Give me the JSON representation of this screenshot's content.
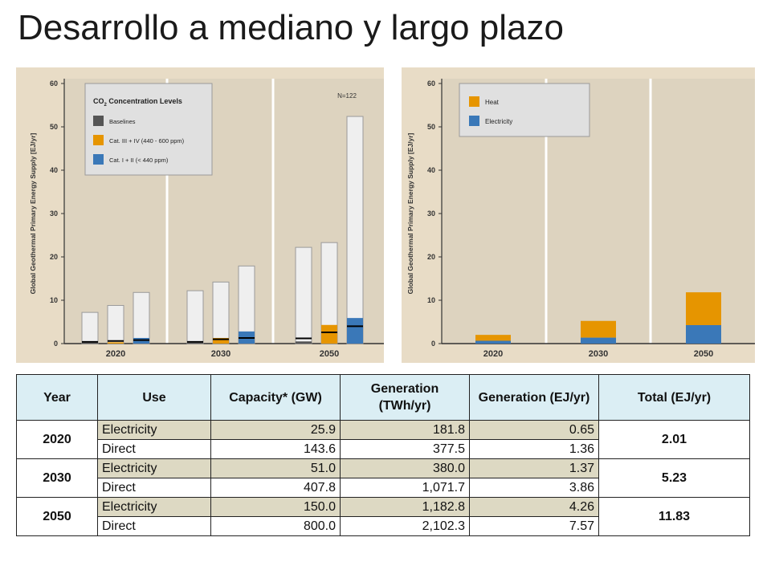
{
  "page_title": "Desarrollo a mediano y largo plazo",
  "colors": {
    "panel_bg": "#e8dcc6",
    "bar_outline": "#9a9a9a",
    "bar_fill": "#efefef",
    "baseline": "#555555",
    "cat34": "#e69500",
    "cat12": "#3a78b8",
    "heat": "#e69500",
    "electricity": "#3a78b8",
    "table_header": "#dbeef4",
    "table_row_highlight": "#ddd9c3"
  },
  "chart_data": [
    {
      "type": "bar",
      "ylabel": "Global Geothermal Primary Energy Supply [EJ/yr]",
      "ylim": [
        0,
        60
      ],
      "yticks": [
        0,
        10,
        20,
        30,
        40,
        50,
        60
      ],
      "legend": {
        "title": "CO2 Concentration Levels",
        "title_main": "CO",
        "title_sub": "2",
        "title_rest": " Concentration Levels",
        "position": "top-left",
        "items": [
          {
            "label": "Baselines",
            "color": "#555555"
          },
          {
            "label": "Cat. III + IV (440 - 600 ppm)",
            "color": "#e69500"
          },
          {
            "label": "Cat. I + II (< 440 ppm)",
            "color": "#3a78b8"
          }
        ]
      },
      "annotation": "N=122",
      "groups": [
        {
          "label": "2020",
          "bars": [
            {
              "category": "Baselines",
              "max": 7.2,
              "median": 0.4,
              "p25": 0.2
            },
            {
              "category": "Cat. III + IV (440 - 600 ppm)",
              "max": 8.8,
              "median": 0.6,
              "p25": 0.3
            },
            {
              "category": "Cat. I + II (< 440 ppm)",
              "max": 11.8,
              "median": 0.8,
              "p25": 1.3
            }
          ]
        },
        {
          "label": "2030",
          "bars": [
            {
              "category": "Baselines",
              "max": 12.2,
              "median": 0.4,
              "p25": 0.2
            },
            {
              "category": "Cat. III + IV (440 - 600 ppm)",
              "max": 14.2,
              "median": 1.0,
              "p25": 1.3
            },
            {
              "category": "Cat. I + II (< 440 ppm)",
              "max": 17.9,
              "median": 1.3,
              "p25": 2.8
            }
          ]
        },
        {
          "label": "2050",
          "bars": [
            {
              "category": "Baselines",
              "max": 22.2,
              "median": 1.2,
              "p25": 0.5
            },
            {
              "category": "Cat. III + IV (440 - 600 ppm)",
              "max": 23.3,
              "median": 2.6,
              "p25": 4.3
            },
            {
              "category": "Cat. I + II (< 440 ppm)",
              "max": 52.4,
              "median": 4.0,
              "p25": 5.9
            }
          ]
        }
      ]
    },
    {
      "type": "bar",
      "stacked": true,
      "ylabel": "Global Geothermal Primary Energy Supply [EJ/yr]",
      "ylim": [
        0,
        60
      ],
      "yticks": [
        0,
        10,
        20,
        30,
        40,
        50,
        60
      ],
      "legend": {
        "position": "top-left",
        "items": [
          {
            "label": "Heat",
            "color": "#e69500"
          },
          {
            "label": "Electricity",
            "color": "#3a78b8"
          }
        ]
      },
      "categories": [
        "2020",
        "2030",
        "2050"
      ],
      "series": [
        {
          "name": "Electricity",
          "values": [
            0.65,
            1.37,
            4.26
          ]
        },
        {
          "name": "Heat",
          "values": [
            1.36,
            3.86,
            7.57
          ]
        }
      ]
    }
  ],
  "table": {
    "headers": [
      "Year",
      "Use",
      "Capacity* (GW)",
      "Generation (TWh/yr)",
      "Generation (EJ/yr)",
      "Total (EJ/yr)"
    ],
    "rows": [
      {
        "year": "2020",
        "total": "2.01",
        "items": [
          {
            "use": "Electricity",
            "capacity": "25.9",
            "twh": "181.8",
            "ej": "0.65"
          },
          {
            "use": "Direct",
            "capacity": "143.6",
            "twh": "377.5",
            "ej": "1.36"
          }
        ]
      },
      {
        "year": "2030",
        "total": "5.23",
        "items": [
          {
            "use": "Electricity",
            "capacity": "51.0",
            "twh": "380.0",
            "ej": "1.37"
          },
          {
            "use": "Direct",
            "capacity": "407.8",
            "twh": "1,071.7",
            "ej": "3.86"
          }
        ]
      },
      {
        "year": "2050",
        "total": "11.83",
        "items": [
          {
            "use": "Electricity",
            "capacity": "150.0",
            "twh": "1,182.8",
            "ej": "4.26"
          },
          {
            "use": "Direct",
            "capacity": "800.0",
            "twh": "2,102.3",
            "ej": "7.57"
          }
        ]
      }
    ]
  }
}
